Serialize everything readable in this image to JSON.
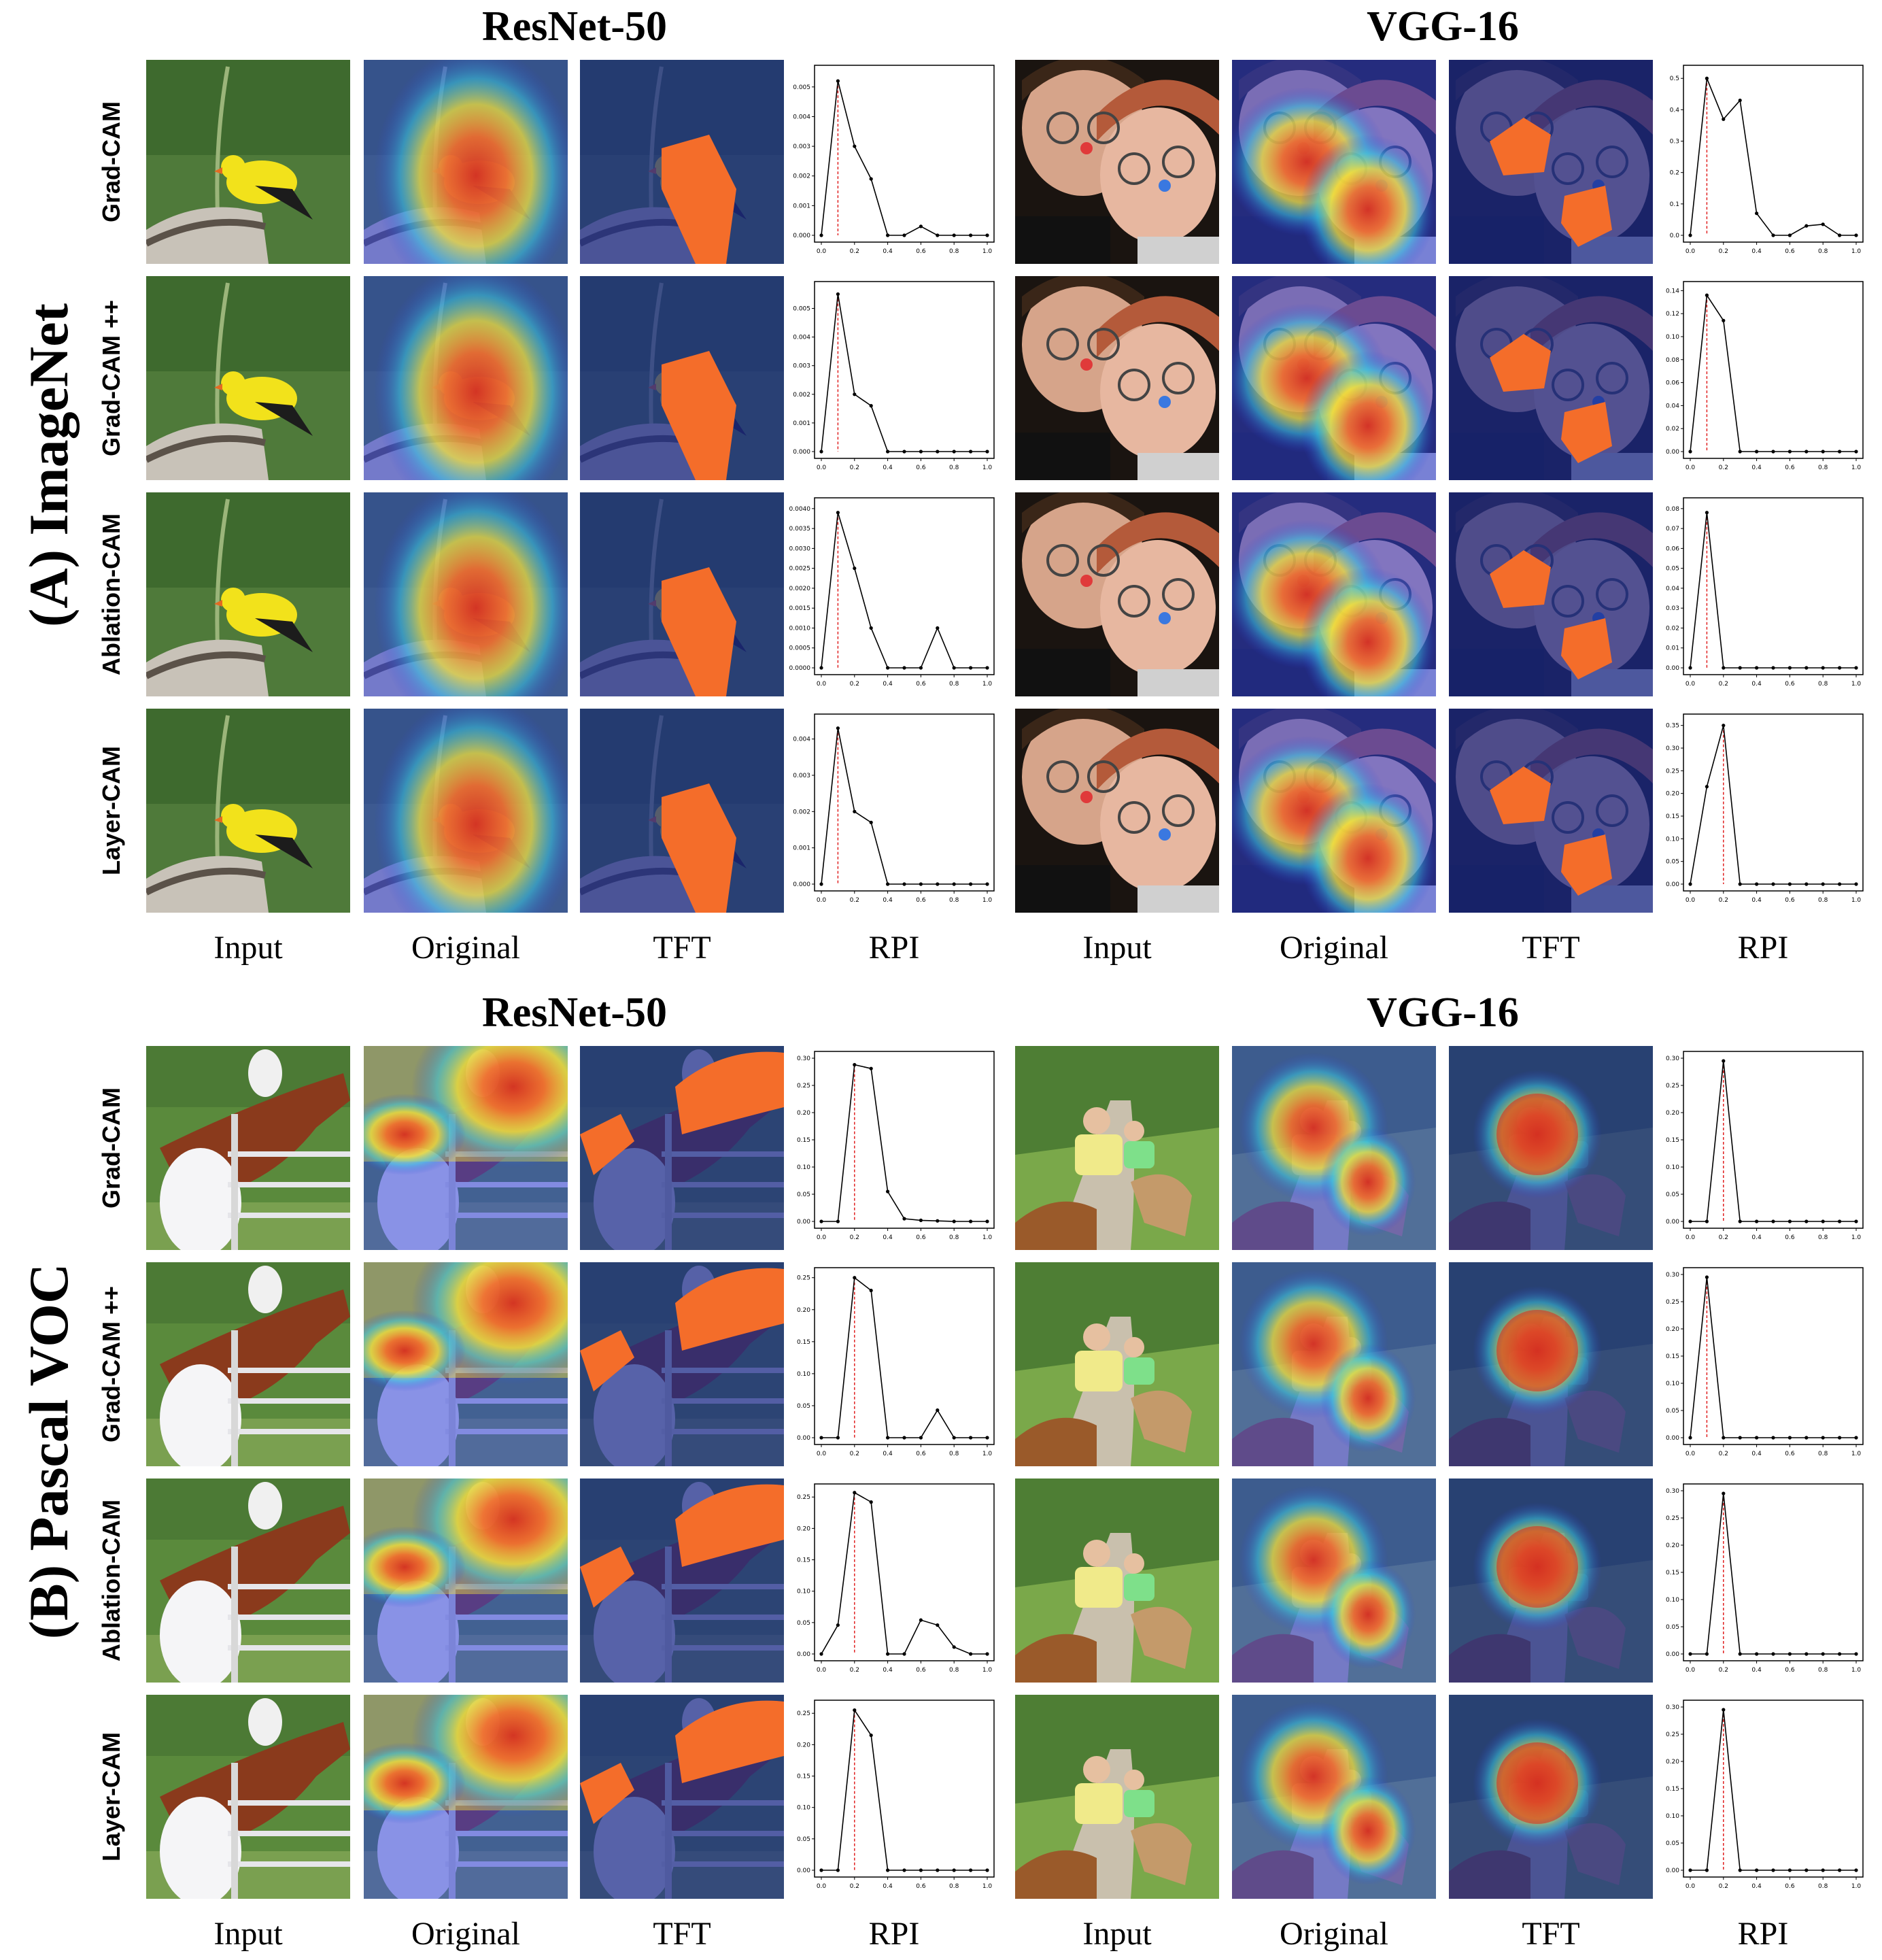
{
  "sections": [
    {
      "id": "imagenet",
      "side_title": "(A) ImageNet",
      "model_titles": [
        "ResNet-50",
        "VGG-16"
      ],
      "column_labels": [
        "Input",
        "Original",
        "TFT",
        "RPI",
        "Input",
        "Original",
        "TFT",
        "RPI"
      ],
      "row_labels": [
        "Grad-CAM",
        "Grad-CAM ++",
        "Ablation-CAM",
        "Layer-CAM"
      ]
    },
    {
      "id": "pascal",
      "side_title": "(B) Pascal VOC",
      "model_titles": [
        "ResNet-50",
        "VGG-16"
      ],
      "column_labels": [
        "Input",
        "Original",
        "TFT",
        "RPI",
        "Input",
        "Original",
        "TFT",
        "RPI"
      ],
      "row_labels": [
        "Grad-CAM",
        "Grad-CAM ++",
        "Ablation-CAM",
        "Layer-CAM"
      ]
    }
  ],
  "chart_data": [
    {
      "type": "line",
      "section": "(A) ImageNet",
      "model": "ResNet-50",
      "method": "Grad-CAM",
      "x": [
        0,
        0.1,
        0.2,
        0.3,
        0.4,
        0.5,
        0.6,
        0.7,
        0.8,
        0.9,
        1.0
      ],
      "values": [
        0,
        0.0052,
        0.003,
        0.0019,
        0,
        0,
        0.0003,
        0,
        0,
        0,
        0
      ],
      "marker_x": 0.1,
      "xlim": [
        0,
        1
      ],
      "ylim": [
        0,
        0.0055
      ],
      "yticks": [
        "0.000",
        "0.001",
        "0.002",
        "0.003",
        "0.004",
        "0.005"
      ],
      "xticks": [
        "0.0",
        "0.2",
        "0.4",
        "0.6",
        "0.8",
        "1.0"
      ]
    },
    {
      "type": "line",
      "section": "(A) ImageNet",
      "model": "VGG-16",
      "method": "Grad-CAM",
      "x": [
        0,
        0.1,
        0.2,
        0.3,
        0.4,
        0.5,
        0.6,
        0.7,
        0.8,
        0.9,
        1.0
      ],
      "values": [
        0,
        0.5,
        0.37,
        0.43,
        0.07,
        0,
        0,
        0.03,
        0.035,
        0,
        0
      ],
      "marker_x": 0.1,
      "xlim": [
        0,
        1
      ],
      "ylim": [
        0,
        0.52
      ],
      "yticks": [
        "0.0",
        "0.1",
        "0.2",
        "0.3",
        "0.4",
        "0.5"
      ],
      "xticks": [
        "0.0",
        "0.2",
        "0.4",
        "0.6",
        "0.8",
        "1.0"
      ]
    },
    {
      "type": "line",
      "section": "(A) ImageNet",
      "model": "ResNet-50",
      "method": "Grad-CAM ++",
      "x": [
        0,
        0.1,
        0.2,
        0.3,
        0.4,
        0.5,
        0.6,
        0.7,
        0.8,
        0.9,
        1.0
      ],
      "values": [
        0,
        0.0055,
        0.002,
        0.0016,
        0,
        0,
        0,
        0,
        0,
        0,
        0
      ],
      "marker_x": 0.1,
      "xlim": [
        0,
        1
      ],
      "ylim": [
        0,
        0.0057
      ],
      "yticks": [
        "0.000",
        "0.001",
        "0.002",
        "0.003",
        "0.004",
        "0.005"
      ],
      "xticks": [
        "0.0",
        "0.2",
        "0.4",
        "0.6",
        "0.8",
        "1.0"
      ]
    },
    {
      "type": "line",
      "section": "(A) ImageNet",
      "model": "VGG-16",
      "method": "Grad-CAM ++",
      "x": [
        0,
        0.1,
        0.2,
        0.3,
        0.4,
        0.5,
        0.6,
        0.7,
        0.8,
        0.9,
        1.0
      ],
      "values": [
        0,
        0.136,
        0.114,
        0,
        0,
        0,
        0,
        0,
        0,
        0,
        0
      ],
      "marker_x": 0.1,
      "xlim": [
        0,
        1
      ],
      "ylim": [
        0,
        0.142
      ],
      "yticks": [
        "0.00",
        "0.02",
        "0.04",
        "0.06",
        "0.08",
        "0.10",
        "0.12",
        "0.14"
      ],
      "xticks": [
        "0.0",
        "0.2",
        "0.4",
        "0.6",
        "0.8",
        "1.0"
      ]
    },
    {
      "type": "line",
      "section": "(A) ImageNet",
      "model": "ResNet-50",
      "method": "Ablation-CAM",
      "x": [
        0,
        0.1,
        0.2,
        0.3,
        0.4,
        0.5,
        0.6,
        0.7,
        0.8,
        0.9,
        1.0
      ],
      "values": [
        0,
        0.0039,
        0.0025,
        0.001,
        0,
        0,
        0,
        0.001,
        0,
        0,
        0
      ],
      "marker_x": 0.1,
      "xlim": [
        0,
        1
      ],
      "ylim": [
        0,
        0.0041
      ],
      "yticks": [
        "0.0000",
        "0.0005",
        "0.0010",
        "0.0015",
        "0.0020",
        "0.0025",
        "0.0030",
        "0.0035",
        "0.0040"
      ],
      "xticks": [
        "0.0",
        "0.2",
        "0.4",
        "0.6",
        "0.8",
        "1.0"
      ]
    },
    {
      "type": "line",
      "section": "(A) ImageNet",
      "model": "VGG-16",
      "method": "Ablation-CAM",
      "x": [
        0,
        0.1,
        0.2,
        0.3,
        0.4,
        0.5,
        0.6,
        0.7,
        0.8,
        0.9,
        1.0
      ],
      "values": [
        0,
        0.078,
        0,
        0,
        0,
        0,
        0,
        0,
        0,
        0,
        0
      ],
      "marker_x": 0.1,
      "xlim": [
        0,
        1
      ],
      "ylim": [
        0,
        0.082
      ],
      "yticks": [
        "0.00",
        "0.01",
        "0.02",
        "0.03",
        "0.04",
        "0.05",
        "0.06",
        "0.07",
        "0.08"
      ],
      "xticks": [
        "0.0",
        "0.2",
        "0.4",
        "0.6",
        "0.8",
        "1.0"
      ]
    },
    {
      "type": "line",
      "section": "(A) ImageNet",
      "model": "ResNet-50",
      "method": "Layer-CAM",
      "x": [
        0,
        0.1,
        0.2,
        0.3,
        0.4,
        0.5,
        0.6,
        0.7,
        0.8,
        0.9,
        1.0
      ],
      "values": [
        0,
        0.0043,
        0.002,
        0.0017,
        0,
        0,
        0,
        0,
        0,
        0,
        0
      ],
      "marker_x": 0.1,
      "xlim": [
        0,
        1
      ],
      "ylim": [
        0,
        0.0045
      ],
      "yticks": [
        "0.000",
        "0.001",
        "0.002",
        "0.003",
        "0.004"
      ],
      "xticks": [
        "0.0",
        "0.2",
        "0.4",
        "0.6",
        "0.8",
        "1.0"
      ]
    },
    {
      "type": "line",
      "section": "(A) ImageNet",
      "model": "VGG-16",
      "method": "Layer-CAM",
      "x": [
        0,
        0.1,
        0.2,
        0.3,
        0.4,
        0.5,
        0.6,
        0.7,
        0.8,
        0.9,
        1.0
      ],
      "values": [
        0,
        0.215,
        0.35,
        0,
        0,
        0,
        0,
        0,
        0,
        0,
        0
      ],
      "marker_x": 0.2,
      "xlim": [
        0,
        1
      ],
      "ylim": [
        0,
        0.36
      ],
      "yticks": [
        "0.00",
        "0.05",
        "0.10",
        "0.15",
        "0.20",
        "0.25",
        "0.30",
        "0.35"
      ],
      "xticks": [
        "0.0",
        "0.2",
        "0.4",
        "0.6",
        "0.8",
        "1.0"
      ]
    },
    {
      "type": "line",
      "section": "(B) Pascal VOC",
      "model": "ResNet-50",
      "method": "Grad-CAM",
      "x": [
        0,
        0.1,
        0.2,
        0.3,
        0.4,
        0.5,
        0.6,
        0.7,
        0.8,
        0.9,
        1.0
      ],
      "values": [
        0,
        0,
        0.288,
        0.281,
        0.055,
        0.005,
        0.002,
        0.001,
        0,
        0,
        0
      ],
      "marker_x": 0.2,
      "xlim": [
        0,
        1
      ],
      "ylim": [
        0,
        0.3
      ],
      "yticks": [
        "0.00",
        "0.05",
        "0.10",
        "0.15",
        "0.20",
        "0.25",
        "0.30"
      ],
      "xticks": [
        "0.0",
        "0.2",
        "0.4",
        "0.6",
        "0.8",
        "1.0"
      ]
    },
    {
      "type": "line",
      "section": "(B) Pascal VOC",
      "model": "VGG-16",
      "method": "Grad-CAM",
      "x": [
        0,
        0.1,
        0.2,
        0.3,
        0.4,
        0.5,
        0.6,
        0.7,
        0.8,
        0.9,
        1.0
      ],
      "values": [
        0,
        0,
        0.295,
        0,
        0,
        0,
        0,
        0,
        0,
        0,
        0
      ],
      "marker_x": 0.2,
      "xlim": [
        0,
        1
      ],
      "ylim": [
        0,
        0.3
      ],
      "yticks": [
        "0.00",
        "0.05",
        "0.10",
        "0.15",
        "0.20",
        "0.25",
        "0.30"
      ],
      "xticks": [
        "0.0",
        "0.2",
        "0.4",
        "0.6",
        "0.8",
        "1.0"
      ]
    },
    {
      "type": "line",
      "section": "(B) Pascal VOC",
      "model": "ResNet-50",
      "method": "Grad-CAM ++",
      "x": [
        0,
        0.1,
        0.2,
        0.3,
        0.4,
        0.5,
        0.6,
        0.7,
        0.8,
        0.9,
        1.0
      ],
      "values": [
        0,
        0,
        0.25,
        0.23,
        0,
        0,
        0,
        0.043,
        0,
        0,
        0
      ],
      "marker_x": 0.2,
      "xlim": [
        0,
        1
      ],
      "ylim": [
        0,
        0.255
      ],
      "yticks": [
        "0.00",
        "0.05",
        "0.10",
        "0.15",
        "0.20",
        "0.25"
      ],
      "xticks": [
        "0.0",
        "0.2",
        "0.4",
        "0.6",
        "0.8",
        "1.0"
      ]
    },
    {
      "type": "line",
      "section": "(B) Pascal VOC",
      "model": "VGG-16",
      "method": "Grad-CAM ++",
      "x": [
        0,
        0.1,
        0.2,
        0.3,
        0.4,
        0.5,
        0.6,
        0.7,
        0.8,
        0.9,
        1.0
      ],
      "values": [
        0,
        0.295,
        0,
        0,
        0,
        0,
        0,
        0,
        0,
        0,
        0
      ],
      "marker_x": 0.1,
      "xlim": [
        0,
        1
      ],
      "ylim": [
        0,
        0.3
      ],
      "yticks": [
        "0.00",
        "0.05",
        "0.10",
        "0.15",
        "0.20",
        "0.25",
        "0.30"
      ],
      "xticks": [
        "0.0",
        "0.2",
        "0.4",
        "0.6",
        "0.8",
        "1.0"
      ]
    },
    {
      "type": "line",
      "section": "(B) Pascal VOC",
      "model": "ResNet-50",
      "method": "Ablation-CAM",
      "x": [
        0,
        0.1,
        0.2,
        0.3,
        0.4,
        0.5,
        0.6,
        0.7,
        0.8,
        0.9,
        1.0
      ],
      "values": [
        0,
        0.046,
        0.257,
        0.242,
        0,
        0,
        0.054,
        0.046,
        0.011,
        0,
        0
      ],
      "marker_x": 0.2,
      "xlim": [
        0,
        1
      ],
      "ylim": [
        0,
        0.26
      ],
      "yticks": [
        "0.00",
        "0.05",
        "0.10",
        "0.15",
        "0.20",
        "0.25"
      ],
      "xticks": [
        "0.0",
        "0.2",
        "0.4",
        "0.6",
        "0.8",
        "1.0"
      ]
    },
    {
      "type": "line",
      "section": "(B) Pascal VOC",
      "model": "VGG-16",
      "method": "Ablation-CAM",
      "x": [
        0,
        0.1,
        0.2,
        0.3,
        0.4,
        0.5,
        0.6,
        0.7,
        0.8,
        0.9,
        1.0
      ],
      "values": [
        0,
        0,
        0.295,
        0,
        0,
        0,
        0,
        0,
        0,
        0,
        0
      ],
      "marker_x": 0.2,
      "xlim": [
        0,
        1
      ],
      "ylim": [
        0,
        0.3
      ],
      "yticks": [
        "0.00",
        "0.05",
        "0.10",
        "0.15",
        "0.20",
        "0.25",
        "0.30"
      ],
      "xticks": [
        "0.0",
        "0.2",
        "0.4",
        "0.6",
        "0.8",
        "1.0"
      ]
    },
    {
      "type": "line",
      "section": "(B) Pascal VOC",
      "model": "ResNet-50",
      "method": "Layer-CAM",
      "x": [
        0,
        0.1,
        0.2,
        0.3,
        0.4,
        0.5,
        0.6,
        0.7,
        0.8,
        0.9,
        1.0
      ],
      "values": [
        0,
        0,
        0.255,
        0.215,
        0,
        0,
        0,
        0,
        0,
        0,
        0
      ],
      "marker_x": 0.2,
      "xlim": [
        0,
        1
      ],
      "ylim": [
        0,
        0.26
      ],
      "yticks": [
        "0.00",
        "0.05",
        "0.10",
        "0.15",
        "0.20",
        "0.25"
      ],
      "xticks": [
        "0.0",
        "0.2",
        "0.4",
        "0.6",
        "0.8",
        "1.0"
      ]
    },
    {
      "type": "line",
      "section": "(B) Pascal VOC",
      "model": "VGG-16",
      "method": "Layer-CAM",
      "x": [
        0,
        0.1,
        0.2,
        0.3,
        0.4,
        0.5,
        0.6,
        0.7,
        0.8,
        0.9,
        1.0
      ],
      "values": [
        0,
        0,
        0.295,
        0,
        0,
        0,
        0,
        0,
        0,
        0,
        0
      ],
      "marker_x": 0.2,
      "xlim": [
        0,
        1
      ],
      "ylim": [
        0,
        0.3
      ],
      "yticks": [
        "0.00",
        "0.05",
        "0.10",
        "0.15",
        "0.20",
        "0.25",
        "0.30"
      ],
      "xticks": [
        "0.0",
        "0.2",
        "0.4",
        "0.6",
        "0.8",
        "1.0"
      ]
    }
  ],
  "colors": {
    "heat_red": "#d7301f",
    "heat_orange": "#f46d2a",
    "heat_yellow": "#f3e23a",
    "heat_cyan": "#39c8e0",
    "heat_blue": "#2f3fd8",
    "overlay_navy": "#1b2a8a",
    "rpi_marker": "#e02020",
    "rpi_line": "#000000"
  },
  "icons": {
    "bird": "goldfinch-photo",
    "faces": "two-faces-photo",
    "horse_jump": "show-jumping-photo",
    "riders": "trail-riders-photo"
  }
}
